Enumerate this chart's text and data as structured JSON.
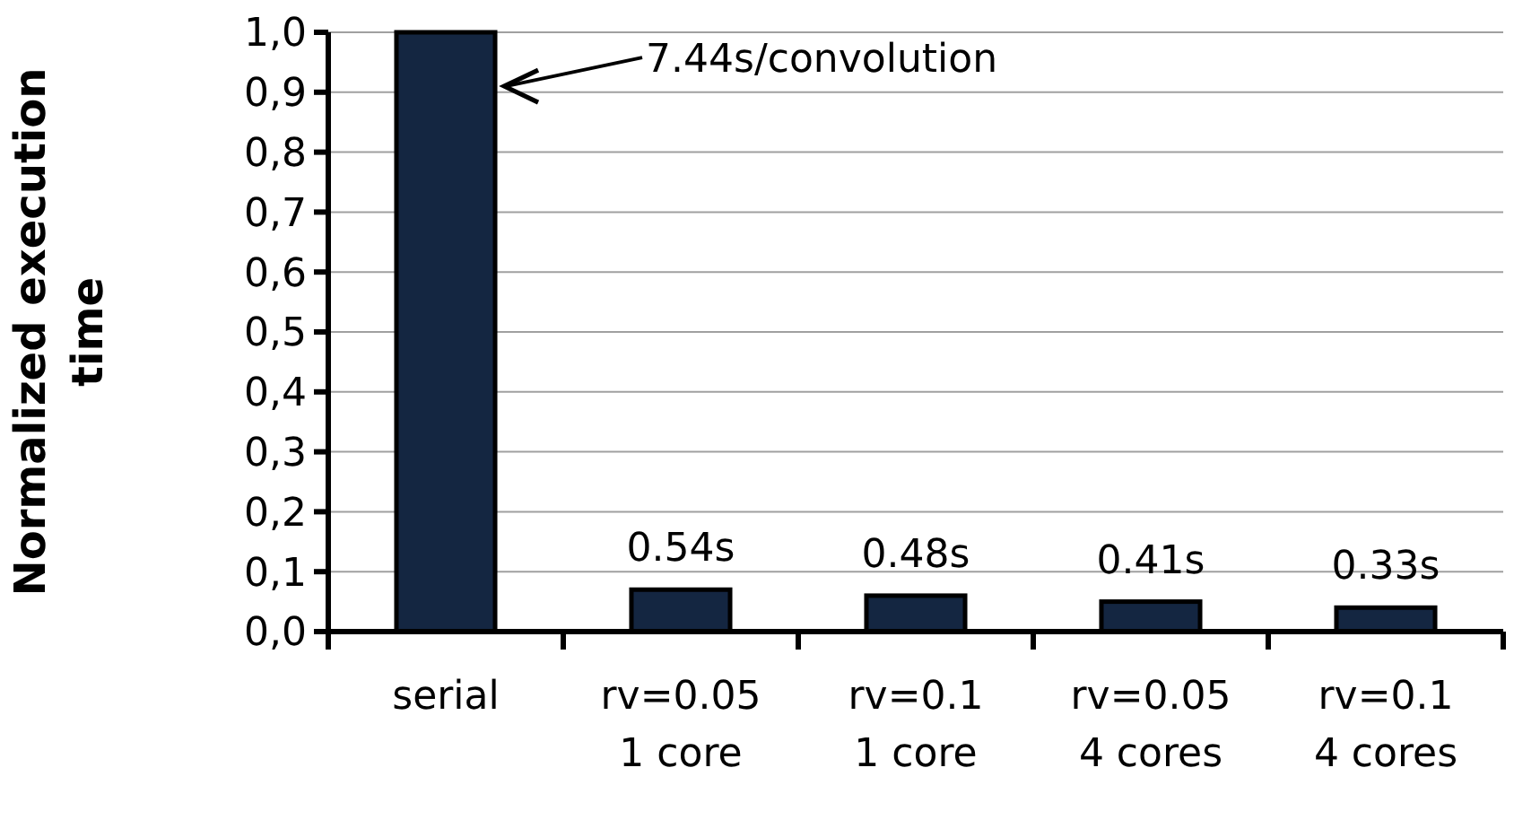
{
  "chart_data": {
    "type": "bar",
    "ylabel": "Normalized execution\ntime",
    "categories": [
      "serial",
      "rv=0.05\n1 core",
      "rv=0.1\n1 core",
      "rv=0.05\n4 cores",
      "rv=0.1\n4 cores"
    ],
    "values": [
      1.0,
      0.07,
      0.06,
      0.05,
      0.04
    ],
    "color": "#142641",
    "ylim": [
      0,
      1
    ],
    "yticks": [
      {
        "value": 0,
        "label": "0,0"
      },
      {
        "value": 0.1,
        "label": "0,1"
      },
      {
        "value": 0.2,
        "label": "0,2"
      },
      {
        "value": 0.3,
        "label": "0,3"
      },
      {
        "value": 0.4,
        "label": "0,4"
      },
      {
        "value": 0.5,
        "label": "0,5"
      },
      {
        "value": 0.6,
        "label": "0,6"
      },
      {
        "value": 0.7,
        "label": "0,7"
      },
      {
        "value": 0.8,
        "label": "0,8"
      },
      {
        "value": 0.9,
        "label": "0,9"
      },
      {
        "value": 1,
        "label": "1,0"
      }
    ],
    "grid": "y",
    "annotations": [
      "7.44s/convolution",
      {
        "text": "0.54s",
        "x": "rv=0.05\n1 core",
        "y": 0.07
      },
      {
        "text": "0.48s",
        "x": "rv=0.1\n1 core",
        "y": 0.06
      },
      {
        "text": "0.41s",
        "x": "rv=0.05\n4 cores",
        "y": 0.05
      },
      {
        "text": "0.33s",
        "x": "rv=0.1\n4 cores",
        "y": 0.04
      }
    ]
  }
}
